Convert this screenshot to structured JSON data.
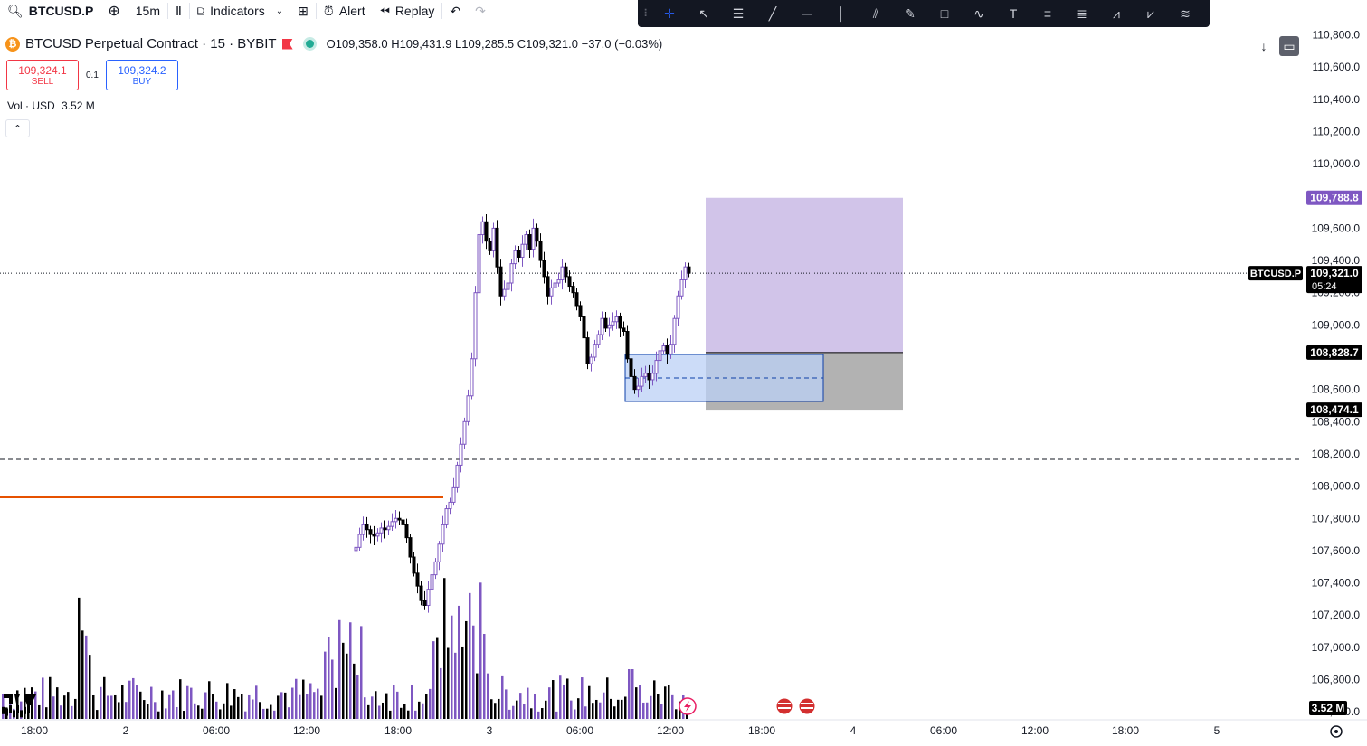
{
  "toolbar": {
    "symbol": "BTCUSD.P",
    "interval": "15m",
    "indicators_label": "Indicators",
    "alert_label": "Alert",
    "replay_label": "Replay"
  },
  "header": {
    "title": "BTCUSD Perpetual Contract · 15 · BYBIT",
    "open": "O109,358.0",
    "high": "H109,431.9",
    "low": "L109,285.5",
    "close": "C109,321.0",
    "change": "−37.0 (−0.03%)"
  },
  "trade": {
    "sell_price": "109,324.1",
    "sell_label": "SELL",
    "spread": "0.1",
    "buy_price": "109,324.2",
    "buy_label": "BUY"
  },
  "volume_legend": {
    "label": "Vol · USD",
    "value": "3.52 M"
  },
  "price_axis": {
    "ticks": [
      "110,800.0",
      "110,600.0",
      "110,400.0",
      "110,200.0",
      "110,000.0",
      "109,600.0",
      "109,400.0",
      "109,200.0",
      "109,000.0",
      "108,600.0",
      "108,400.0",
      "108,200.0",
      "108,000.0",
      "107,800.0",
      "107,600.0",
      "107,400.0",
      "107,200.0",
      "107,000.0",
      "106,800.0",
      "106,600.0"
    ],
    "tick_values": [
      110800,
      110600,
      110400,
      110200,
      110000,
      109600,
      109400,
      109200,
      109000,
      108600,
      108400,
      108200,
      108000,
      107800,
      107600,
      107400,
      107200,
      107000,
      106800,
      106600
    ],
    "tags": [
      {
        "text": "109,788.8",
        "value": 109788.8,
        "color": "#7e57c2"
      },
      {
        "text": "108,828.7",
        "value": 108828.7,
        "color": "#000000"
      },
      {
        "text": "108,474.1",
        "value": 108474.1,
        "color": "#000000"
      }
    ],
    "last": {
      "symbol": "BTCUSD.P",
      "price": "109,321.0",
      "countdown": "05:24",
      "value": 109321.0
    },
    "volume_tag": "3.52 M"
  },
  "time_axis": {
    "labels": [
      "18:00",
      "2",
      "06:00",
      "12:00",
      "18:00",
      "3",
      "06:00",
      "12:00",
      "18:00",
      "4",
      "06:00",
      "12:00",
      "18:00",
      "5"
    ]
  },
  "colors": {
    "candle_up": "#7e57c2",
    "candle_down": "#000000",
    "volume_up": "#7e57c2",
    "volume_down": "#000000",
    "target_zone": "#d1c4e9",
    "stop_zone": "#b2b2b2",
    "fvg_zone": "#bbd0f5",
    "fvg_border": "#0d3fa8",
    "support_line": "#e65100"
  }
}
